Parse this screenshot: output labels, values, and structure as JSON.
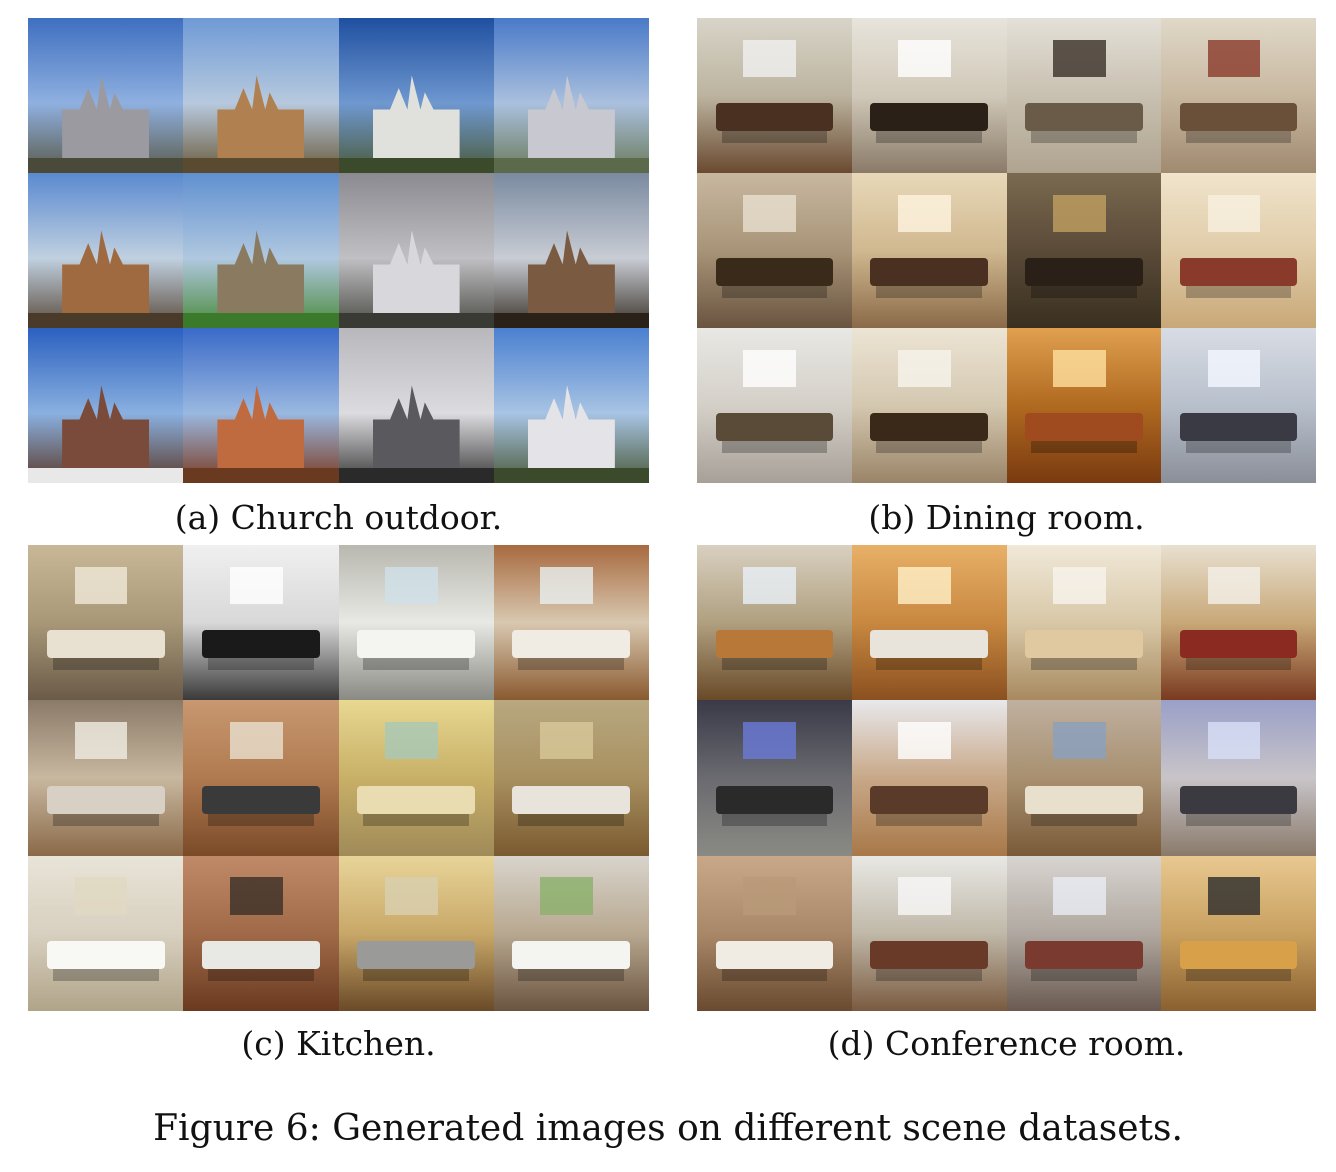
{
  "panels": [
    {
      "id": "a",
      "caption": "(a) Church outdoor."
    },
    {
      "id": "b",
      "caption": "(b) Dining room."
    },
    {
      "id": "c",
      "caption": "(c) Kitchen."
    },
    {
      "id": "d",
      "caption": "(d) Conference room."
    }
  ],
  "figure_caption": "Figure 6: Generated images on different scene datasets."
}
